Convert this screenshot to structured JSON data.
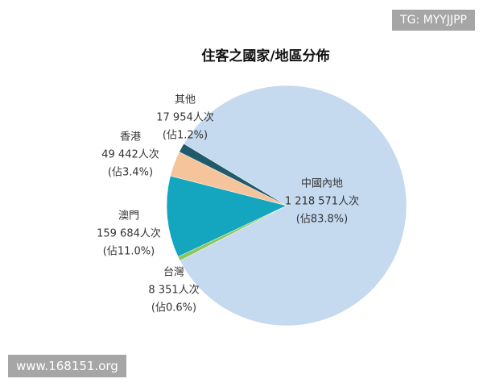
{
  "chart_data": {
    "type": "pie",
    "title": "住客之國家/地區分佈",
    "categories": [
      "中國內地",
      "台灣",
      "澳門",
      "香港",
      "其他"
    ],
    "values": [
      1218571,
      8351,
      159684,
      49442,
      17954
    ],
    "value_labels": [
      "1 218 571人次",
      "8 351人次",
      "159 684人次",
      "49 442人次",
      "17 954人次"
    ],
    "share_labels": [
      "(佔83.8%)",
      "(佔0.6%)",
      "(佔11.0%)",
      "(佔3.4%)",
      "(佔1.2%)"
    ],
    "colors": [
      "#c5d9ef",
      "#8cc65a",
      "#14a6bf",
      "#f6c49b",
      "#1f5b6b"
    ]
  },
  "watermarks": [
    "TG: MYYJJPP",
    "www.168151.org"
  ]
}
